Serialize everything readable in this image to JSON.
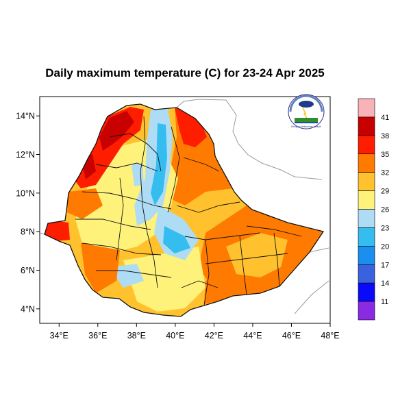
{
  "title": "Daily maximum temperature (C) for 23-24 Apr 2025",
  "axes": {
    "x_ticks": [
      "34°E",
      "36°E",
      "38°E",
      "40°E",
      "42°E",
      "44°E",
      "46°E",
      "48°E"
    ],
    "y_ticks": [
      "14°N",
      "12°N",
      "10°N",
      "8°N",
      "6°N",
      "4°N"
    ]
  },
  "colorbar": {
    "labels": [
      "41",
      "38",
      "35",
      "32",
      "29",
      "26",
      "23",
      "20",
      "17",
      "14",
      "11"
    ],
    "colors": [
      "#f9b3b8",
      "#c80000",
      "#ff1d00",
      "#ff7a00",
      "#ffc22e",
      "#fff27a",
      "#aedcf5",
      "#36bdf0",
      "#1a8ff0",
      "#3b62de",
      "#0a0afa",
      "#8a2be2"
    ]
  },
  "logo": {
    "name": "ethiopian-meteorology-institute-logo",
    "text": "Ethiopian Meteorology Institute"
  },
  "map": {
    "palette": {
      "hot_dark": "#c80000",
      "hot": "#ff1d00",
      "warm": "#ff7a00",
      "mild": "#ffc22e",
      "cool_yellow": "#fff27a",
      "light_blue": "#aedcf5",
      "blue": "#36bdf0",
      "deep_blue": "#1a8ff0"
    }
  }
}
